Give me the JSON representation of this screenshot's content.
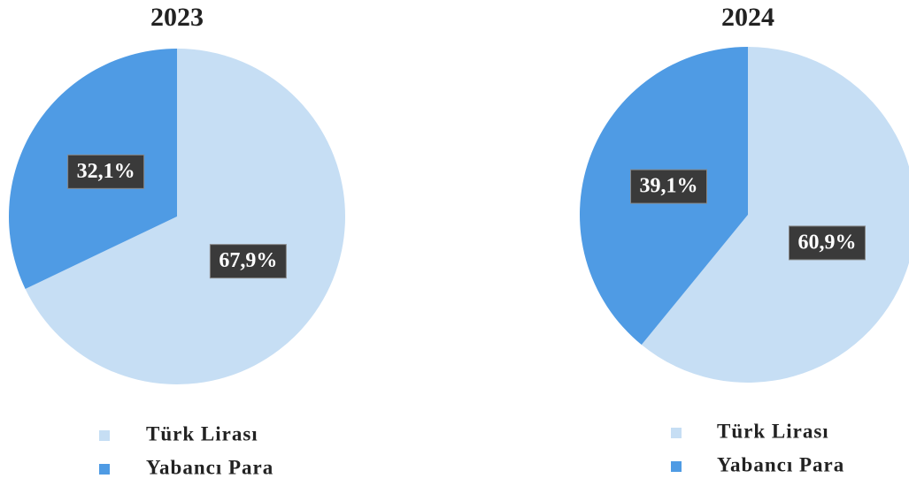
{
  "chart_data": [
    {
      "type": "pie",
      "title": "2023",
      "categories": [
        "Türk Lirası",
        "Yabancı Para"
      ],
      "values": [
        67.9,
        32.1
      ],
      "value_labels": [
        "67,9%",
        "32,1%"
      ],
      "colors": [
        "#c6def4",
        "#4f9be4"
      ]
    },
    {
      "type": "pie",
      "title": "2024",
      "categories": [
        "Türk Lirası",
        "Yabancı Para"
      ],
      "values": [
        60.9,
        39.1
      ],
      "value_labels": [
        "60,9%",
        "39,1%"
      ],
      "colors": [
        "#c6def4",
        "#4f9be4"
      ]
    }
  ]
}
